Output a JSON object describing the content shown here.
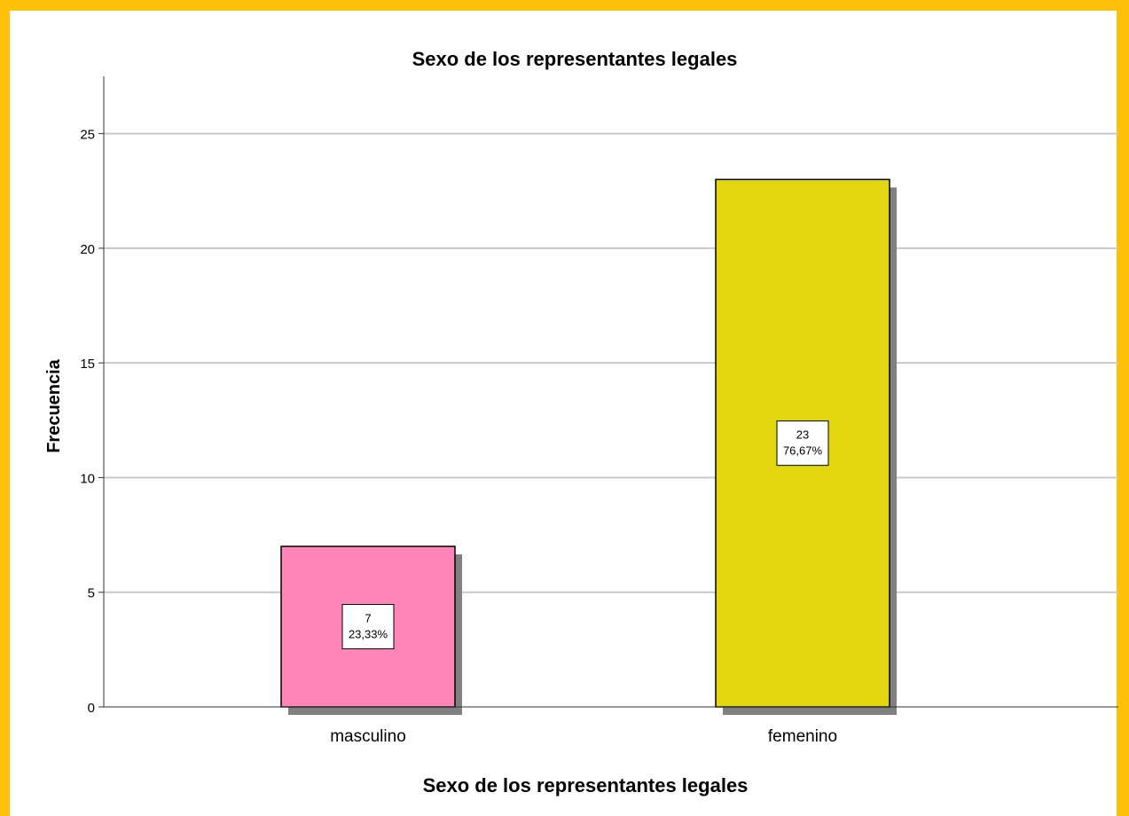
{
  "chart_data": {
    "type": "bar",
    "title": "Sexo de los representantes legales",
    "xlabel": "Sexo de los representantes legales",
    "ylabel": "Frecuencia",
    "categories": [
      "masculino",
      "femenino"
    ],
    "values": [
      7,
      23
    ],
    "percent_labels": [
      "23,33%",
      "76,67%"
    ],
    "bar_colors": [
      "#ff85b8",
      "#e2d70e"
    ],
    "shadow_color": "#808080",
    "ylim": [
      0,
      27.5
    ],
    "yticks": [
      0,
      5,
      10,
      15,
      20,
      25
    ],
    "grid": true
  },
  "colors": {
    "frame": "#ffc107"
  }
}
